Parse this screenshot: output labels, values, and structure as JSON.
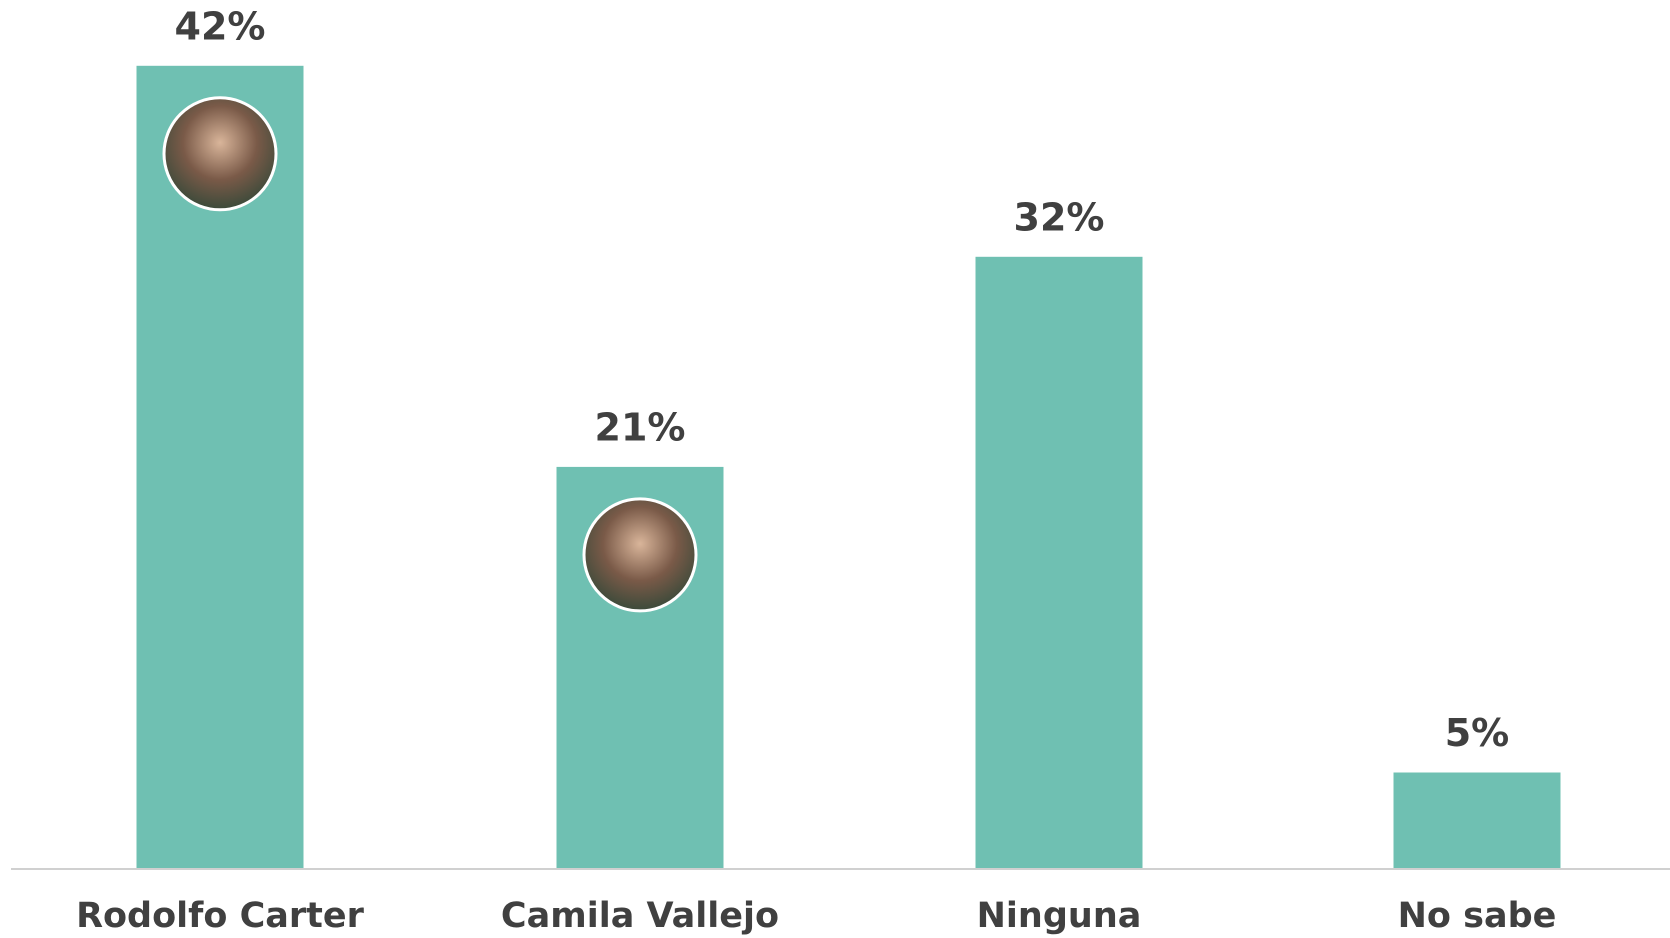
{
  "chart_data": {
    "type": "bar",
    "categories": [
      "Rodolfo Carter",
      "Camila Vallejo",
      "Ninguna",
      "No sabe"
    ],
    "values": [
      42,
      21,
      32,
      5
    ],
    "value_labels": [
      "42%",
      "21%",
      "32%",
      "5%"
    ],
    "color": "#6fc0b2"
  }
}
